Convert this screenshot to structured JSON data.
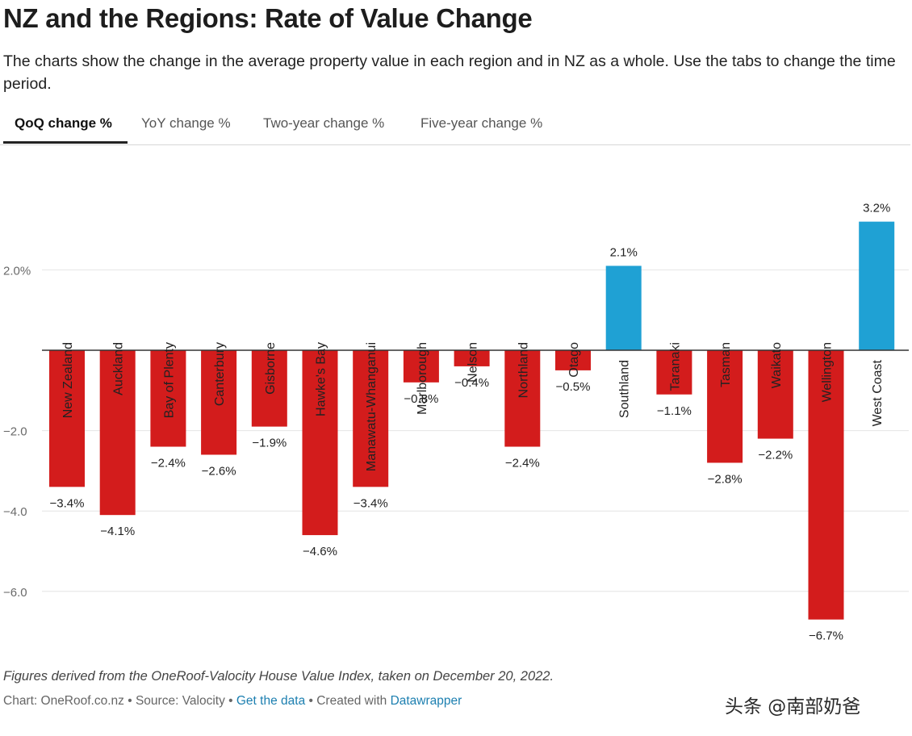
{
  "header": {
    "title": "NZ and the Regions: Rate of Value Change",
    "description": "The charts show the change in the average property value in each region and in NZ as a whole. Use the tabs to change the time period."
  },
  "tabs": [
    {
      "label": "QoQ change %",
      "active": true
    },
    {
      "label": "YoY change %",
      "active": false
    },
    {
      "label": "Two-year change %",
      "active": false
    },
    {
      "label": "Five-year change %",
      "active": false
    }
  ],
  "colors": {
    "negative": "#d31c1c",
    "positive": "#1fa1d4",
    "grid": "#e4e4e4",
    "axis_text": "#6a6a6a"
  },
  "chart_data": {
    "type": "bar",
    "title": "",
    "xlabel": "",
    "ylabel": "",
    "ylim": [
      -7,
      3.5
    ],
    "y_ticks": [
      2,
      0,
      -2,
      -4,
      -6
    ],
    "y_tick_labels": [
      "2.0%",
      "",
      "−2.0",
      "−4.0",
      "−6.0"
    ],
    "categories": [
      "New Zealand",
      "Auckland",
      "Bay of Plenty",
      "Canterbury",
      "Gisborne",
      "Hawke's Bay",
      "Manawatu-Whanganui",
      "Marlborough",
      "Nelson",
      "Northland",
      "Otago",
      "Southland",
      "Taranaki",
      "Tasman",
      "Waikato",
      "Wellington",
      "West Coast"
    ],
    "values": [
      -3.4,
      -4.1,
      -2.4,
      -2.6,
      -1.9,
      -4.6,
      -3.4,
      -0.8,
      -0.4,
      -2.4,
      -0.5,
      2.1,
      -1.1,
      -2.8,
      -2.2,
      -6.7,
      3.2
    ],
    "value_labels": [
      "−3.4%",
      "−4.1%",
      "−2.4%",
      "−2.6%",
      "−1.9%",
      "−4.6%",
      "−3.4%",
      "−0.8%",
      "−0.4%",
      "−2.4%",
      "−0.5%",
      "2.1%",
      "−1.1%",
      "−2.8%",
      "−2.2%",
      "−6.7%",
      "3.2%"
    ]
  },
  "notes": {
    "source_note": "Figures derived from the OneRoof-Valocity House Value Index, taken on December 20, 2022.",
    "credit_chart": "Chart: OneRoof.co.nz",
    "credit_source": "Source: Valocity",
    "sep": " • ",
    "get_data": "Get the data",
    "created_with": "Created with",
    "datawrapper": "Datawrapper"
  },
  "watermark": "头条 @南部奶爸"
}
